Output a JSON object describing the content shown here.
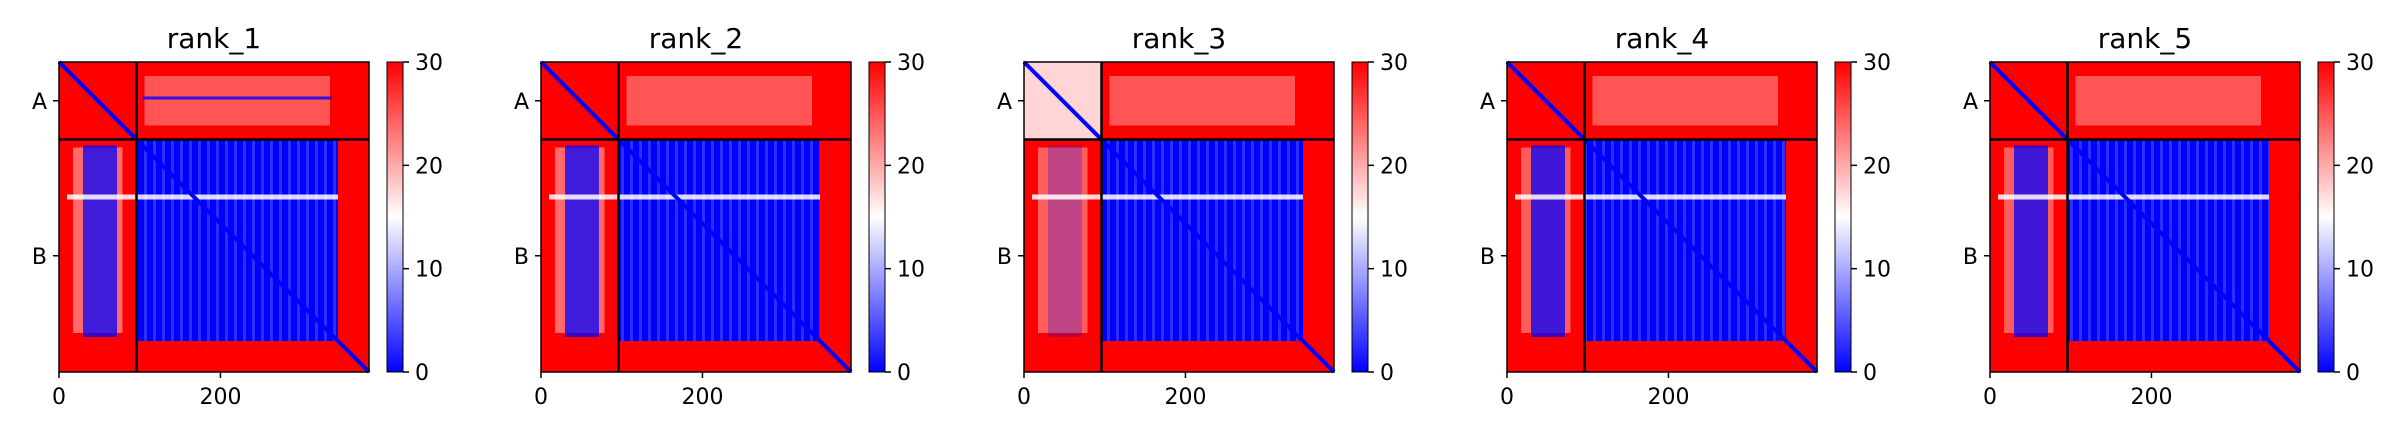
{
  "chart_data": [
    {
      "type": "heatmap",
      "title": "rank_1",
      "chain_labels": [
        "A",
        "B"
      ],
      "chain_boundary": 96,
      "matrix_size": 384,
      "xticks": [
        0,
        200
      ],
      "xticklabels": [
        "0",
        "200"
      ],
      "colorbar": {
        "min": 0,
        "max": 30,
        "ticks": [
          0,
          10,
          20,
          30
        ],
        "ticklabels": [
          "0",
          "10",
          "20",
          "30"
        ],
        "colormap": "bwr"
      }
    },
    {
      "type": "heatmap",
      "title": "rank_2",
      "chain_labels": [
        "A",
        "B"
      ],
      "chain_boundary": 96,
      "matrix_size": 384,
      "xticks": [
        0,
        200
      ],
      "xticklabels": [
        "0",
        "200"
      ],
      "colorbar": {
        "min": 0,
        "max": 30,
        "ticks": [
          0,
          10,
          20,
          30
        ],
        "ticklabels": [
          "0",
          "10",
          "20",
          "30"
        ],
        "colormap": "bwr"
      }
    },
    {
      "type": "heatmap",
      "title": "rank_3",
      "chain_labels": [
        "A",
        "B"
      ],
      "chain_boundary": 96,
      "matrix_size": 384,
      "xticks": [
        0,
        200
      ],
      "xticklabels": [
        "0",
        "200"
      ],
      "colorbar": {
        "min": 0,
        "max": 30,
        "ticks": [
          0,
          10,
          20,
          30
        ],
        "ticklabels": [
          "0",
          "10",
          "20",
          "30"
        ],
        "colormap": "bwr"
      }
    },
    {
      "type": "heatmap",
      "title": "rank_4",
      "chain_labels": [
        "A",
        "B"
      ],
      "chain_boundary": 96,
      "matrix_size": 384,
      "xticks": [
        0,
        200
      ],
      "xticklabels": [
        "0",
        "200"
      ],
      "colorbar": {
        "min": 0,
        "max": 30,
        "ticks": [
          0,
          10,
          20,
          30
        ],
        "ticklabels": [
          "0",
          "10",
          "20",
          "30"
        ],
        "colormap": "bwr"
      }
    },
    {
      "type": "heatmap",
      "title": "rank_5",
      "chain_labels": [
        "A",
        "B"
      ],
      "chain_boundary": 96,
      "matrix_size": 384,
      "xticks": [
        0,
        200
      ],
      "xticklabels": [
        "0",
        "200"
      ],
      "colorbar": {
        "min": 0,
        "max": 30,
        "ticks": [
          0,
          10,
          20,
          30
        ],
        "ticklabels": [
          "0",
          "10",
          "20",
          "30"
        ],
        "colormap": "bwr"
      }
    }
  ],
  "colors": {
    "low": "#0000ff",
    "mid": "#ffffff",
    "high": "#ff0000",
    "boundary_line": "#000000"
  }
}
